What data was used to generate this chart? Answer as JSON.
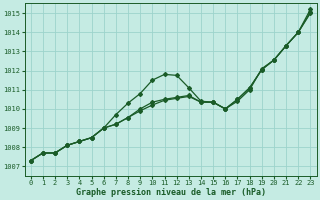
{
  "xlabel": "Graphe pression niveau de la mer (hPa)",
  "ylim": [
    1006.5,
    1015.5
  ],
  "xlim": [
    -0.5,
    23.5
  ],
  "yticks": [
    1007,
    1008,
    1009,
    1010,
    1011,
    1012,
    1013,
    1014,
    1015
  ],
  "xticks": [
    0,
    1,
    2,
    3,
    4,
    5,
    6,
    7,
    8,
    9,
    10,
    11,
    12,
    13,
    14,
    15,
    16,
    17,
    18,
    19,
    20,
    21,
    22,
    23
  ],
  "bg_color": "#c5ebe3",
  "grid_color": "#9dd4cc",
  "line_color": "#1a5c28",
  "series": [
    [
      1007.3,
      1007.7,
      1007.7,
      1008.1,
      1008.3,
      1008.5,
      1009.0,
      1009.7,
      1010.3,
      1010.8,
      1011.5,
      1011.8,
      1011.75,
      1011.1,
      1010.4,
      1010.35,
      1010.0,
      1010.4,
      1011.0,
      1012.1,
      1012.55,
      1013.3,
      1014.0,
      1015.0
    ],
    [
      1007.3,
      1007.7,
      1007.7,
      1008.1,
      1008.3,
      1008.5,
      1009.0,
      1009.2,
      1009.55,
      1010.0,
      1010.35,
      1010.5,
      1010.6,
      1010.7,
      1010.35,
      1010.35,
      1010.0,
      1010.5,
      1011.1,
      1012.05,
      1012.55,
      1013.3,
      1014.0,
      1015.05
    ],
    [
      1007.3,
      1007.7,
      1007.7,
      1008.1,
      1008.3,
      1008.5,
      1009.0,
      1009.2,
      1009.55,
      1009.9,
      1010.2,
      1010.45,
      1010.55,
      1010.65,
      1010.35,
      1010.35,
      1010.0,
      1010.5,
      1011.1,
      1012.05,
      1012.55,
      1013.3,
      1014.0,
      1015.2
    ]
  ],
  "marker": "D",
  "markersize": 2.0,
  "linewidths": [
    0.9,
    0.9,
    0.9
  ],
  "xlabel_fontsize": 6,
  "xlabel_fontweight": "bold",
  "tick_fontsize": 5,
  "figsize": [
    3.2,
    2.0
  ],
  "dpi": 100
}
